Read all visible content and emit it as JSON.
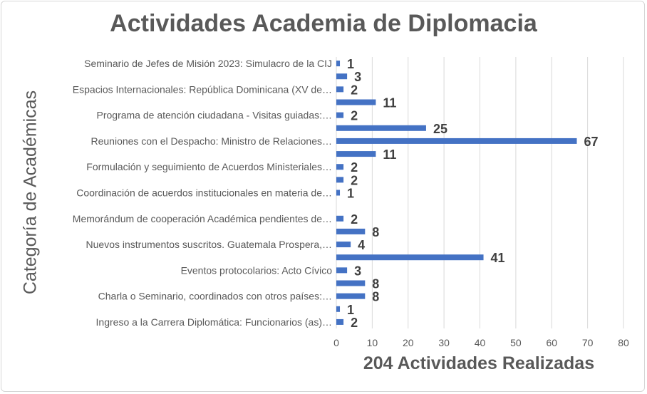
{
  "chart_data": {
    "type": "bar",
    "orientation": "horizontal",
    "title": "Actividades Academia de Diplomacia",
    "xlabel": "204 Actividades Realizadas",
    "ylabel": "Categoría de Académicas",
    "xlim": [
      0,
      80
    ],
    "xticks": [
      0,
      10,
      20,
      30,
      40,
      50,
      60,
      70,
      80
    ],
    "grid": true,
    "bar_color": "#4472c4",
    "categories": [
      "Seminario de Jefes de Misión 2023: Simulacro de la CIJ",
      "",
      "Espacios Internacionales: República Dominicana (XV de…",
      "",
      "Programa de atención ciudadana - Visitas guiadas:…",
      "",
      "Reuniones con el Despacho: Ministro de Relaciones…",
      "",
      "Formulación y seguimiento de Acuerdos Ministeriales…",
      "",
      "Coordinación de acuerdos institucionales en materia de…",
      "",
      "Memorándum de cooperación Académica pendientes de…",
      "",
      "Nuevos instrumentos suscritos. Guatemala Prospera,…",
      "",
      "Eventos protocolarios: Acto Cívico",
      "",
      "Charla o Seminario, coordinados con otros países:…",
      "",
      "Ingreso a la Carrera Diplomática: Funcionarios (as)…"
    ],
    "values": [
      1,
      3,
      2,
      11,
      2,
      25,
      67,
      11,
      2,
      2,
      1,
      null,
      2,
      8,
      4,
      41,
      3,
      8,
      8,
      1,
      2
    ]
  }
}
